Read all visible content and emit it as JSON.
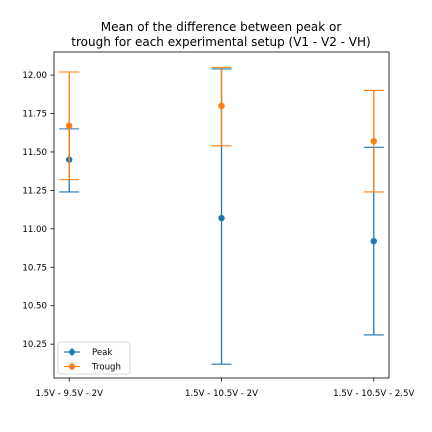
{
  "chart_data": {
    "type": "errorbar",
    "title": "Mean of the difference between peak or trough for each experimental setup (V1 - V2 - VH)",
    "title_lines": [
      "Mean of the difference between peak or",
      "trough for each experimental setup (V1 - V2 - VH)"
    ],
    "xlabel": "",
    "ylabel": "",
    "categories": [
      "1.5V - 9.5V - 2V",
      "1.5V - 10.5V - 2V",
      "1.5V - 10.5V - 2.5V"
    ],
    "ylim": [
      10.03,
      12.15
    ],
    "yticks": [
      10.25,
      10.5,
      10.75,
      11.0,
      11.25,
      11.5,
      11.75,
      12.0
    ],
    "ytick_labels": [
      "10.25",
      "10.50",
      "10.75",
      "11.00",
      "11.25",
      "11.50",
      "11.75",
      "12.00"
    ],
    "grid": false,
    "legend": "lower-left",
    "series": [
      {
        "name": "Peak",
        "color": "#1f77b4",
        "values": [
          11.45,
          11.07,
          10.92
        ],
        "lower": [
          11.24,
          10.12,
          10.31
        ],
        "upper": [
          11.65,
          12.04,
          11.53
        ]
      },
      {
        "name": "Trough",
        "color": "#ff7f0e",
        "values": [
          11.67,
          11.8,
          11.57
        ],
        "lower": [
          11.32,
          11.54,
          11.24
        ],
        "upper": [
          12.02,
          12.05,
          11.9
        ]
      }
    ]
  }
}
